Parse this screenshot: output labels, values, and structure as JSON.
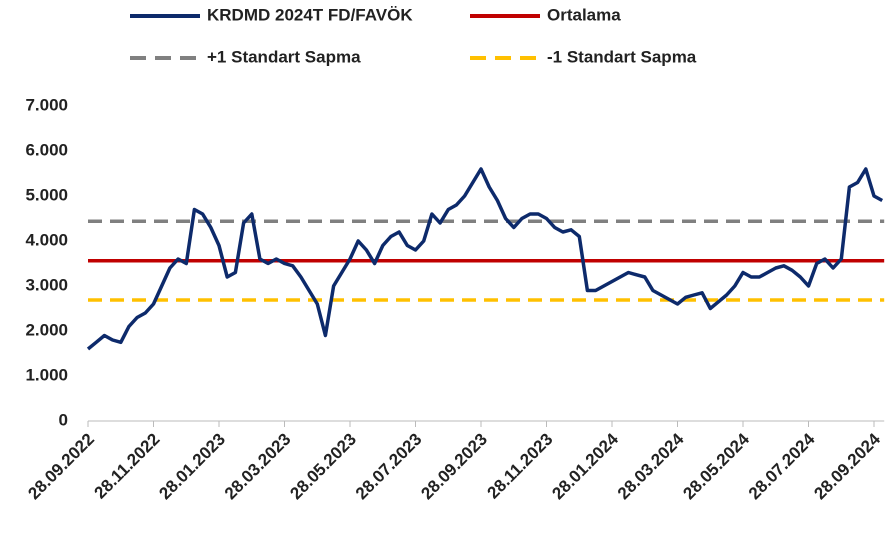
{
  "chart_data": {
    "type": "line",
    "categories": [
      "28.09.2022",
      null,
      null,
      null,
      null,
      null,
      null,
      null,
      "28.11.2022",
      null,
      null,
      null,
      null,
      null,
      null,
      null,
      "28.01.2023",
      null,
      null,
      null,
      null,
      null,
      null,
      null,
      "28.03.2023",
      null,
      null,
      null,
      null,
      null,
      null,
      null,
      "28.05.2023",
      null,
      null,
      null,
      null,
      null,
      null,
      null,
      "28.07.2023",
      null,
      null,
      null,
      null,
      null,
      null,
      null,
      "28.09.2023",
      null,
      null,
      null,
      null,
      null,
      null,
      null,
      "28.11.2023",
      null,
      null,
      null,
      null,
      null,
      null,
      null,
      "28.01.2024",
      null,
      null,
      null,
      null,
      null,
      null,
      null,
      "28.03.2024",
      null,
      null,
      null,
      null,
      null,
      null,
      null,
      "28.05.2024",
      null,
      null,
      null,
      null,
      null,
      null,
      null,
      "28.07.2024",
      null,
      null,
      null,
      null,
      null,
      null,
      null,
      "28.09.2024",
      null
    ],
    "series": [
      {
        "name": "KRDMD 2024T FD/FAVÖK",
        "color": "#0d2a6b",
        "values": [
          1600,
          1750,
          1900,
          1800,
          1750,
          2100,
          2300,
          2400,
          2600,
          3000,
          3400,
          3600,
          3500,
          4700,
          4600,
          4300,
          3900,
          3200,
          3300,
          4400,
          4600,
          3600,
          3500,
          3600,
          3500,
          3450,
          3200,
          2900,
          2600,
          1900,
          3000,
          3300,
          3600,
          4000,
          3800,
          3500,
          3900,
          4100,
          4200,
          3900,
          3800,
          4000,
          4600,
          4400,
          4700,
          4800,
          5000,
          5300,
          5600,
          5200,
          4900,
          4500,
          4300,
          4500,
          4600,
          4600,
          4500,
          4300,
          4200,
          4250,
          4100,
          2900,
          2900,
          3000,
          3100,
          3200,
          3300,
          3250,
          3200,
          2900,
          2800,
          2700,
          2600,
          2750,
          2800,
          2850,
          2500,
          2650,
          2800,
          3000,
          3300,
          3200,
          3200,
          3300,
          3400,
          3450,
          3350,
          3200,
          3000,
          3500,
          3600,
          3400,
          3600,
          5200,
          5300,
          5600,
          5000,
          4900
        ]
      }
    ],
    "reference_lines": [
      {
        "name": "Ortalama",
        "color": "#c00000",
        "value": 3560,
        "dashed": false
      },
      {
        "name": "+1 Standart Sapma",
        "color": "#808080",
        "value": 4440,
        "dashed": true
      },
      {
        "name": "-1 Standart Sapma",
        "color": "#ffc000",
        "value": 2690,
        "dashed": true
      }
    ],
    "ylim": [
      0,
      7000
    ],
    "yticks": [
      0,
      {
        "value": 1000,
        "label": "1.000"
      },
      {
        "value": 2000,
        "label": "2.000"
      },
      {
        "value": 3000,
        "label": "3.000"
      },
      {
        "value": 4000,
        "label": "4.000"
      },
      {
        "value": 5000,
        "label": "5.000"
      },
      {
        "value": 6000,
        "label": "6.000"
      },
      {
        "value": 7000,
        "label": "7.000"
      }
    ],
    "grid": false
  }
}
